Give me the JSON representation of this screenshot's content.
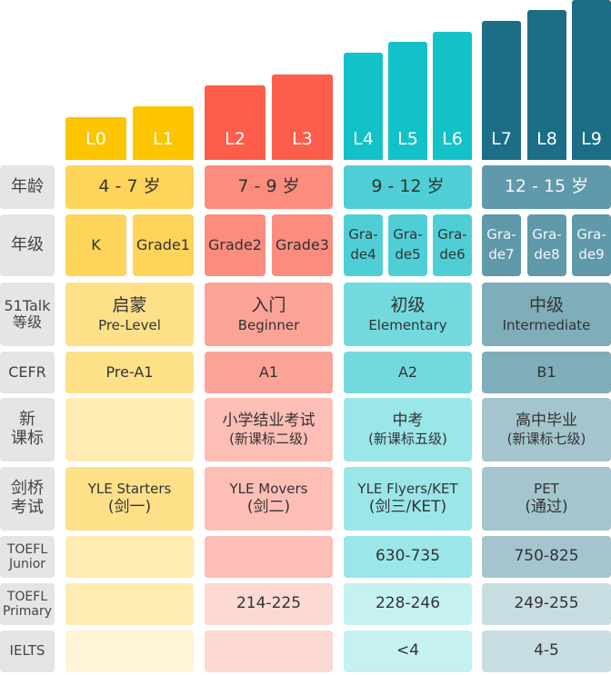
{
  "levels": [
    "L0",
    "L1",
    "L2",
    "L3",
    "L4",
    "L5",
    "L6",
    "L7",
    "L8",
    "L9"
  ],
  "row_labels": {
    "age": "年龄",
    "grade": "年级",
    "talk_level": [
      "51Talk",
      "等级"
    ],
    "cefr": "CEFR",
    "curriculum": [
      "新",
      "课标"
    ],
    "cambridge": [
      "剑桥",
      "考试"
    ],
    "toefl_junior": [
      "TOEFL",
      "Junior"
    ],
    "toefl_primary": [
      "TOEFL",
      "Primary"
    ],
    "ielts": "IELTS"
  },
  "age": [
    "4 - 7 岁",
    "7 - 9 岁",
    "9 - 12 岁",
    "12 - 15 岁"
  ],
  "grade": {
    "k": "K",
    "grade1": "Grade1",
    "grade2": "Grade2",
    "grade3": "Grade3",
    "split": [
      [
        "Gra-",
        "de4"
      ],
      [
        "Gra-",
        "de5"
      ],
      [
        "Gra-",
        "de6"
      ],
      [
        "Gra-",
        "de7"
      ],
      [
        "Gra-",
        "de8"
      ],
      [
        "Gra-",
        "de9"
      ]
    ]
  },
  "talk_level": [
    {
      "cn": "启蒙",
      "en": "Pre-Level"
    },
    {
      "cn": "入门",
      "en": "Beginner"
    },
    {
      "cn": "初级",
      "en": "Elementary"
    },
    {
      "cn": "中级",
      "en": "Intermediate"
    }
  ],
  "cefr": [
    "Pre-A1",
    "A1",
    "A2",
    "B1"
  ],
  "curriculum": [
    {
      "main": "",
      "sub": ""
    },
    {
      "main": "小学结业考试",
      "sub": "(新课标二级)"
    },
    {
      "main": "中考",
      "sub": "(新课标五级)"
    },
    {
      "main": "高中毕业",
      "sub": "(新课标七级)"
    }
  ],
  "cambridge": [
    {
      "main": "YLE Starters",
      "sub": "(剑一)"
    },
    {
      "main": "YLE Movers",
      "sub": "(剑二)"
    },
    {
      "main": "YLE Flyers/KET",
      "sub": "(剑三/KET)"
    },
    {
      "main": "PET",
      "sub": "(通过)"
    }
  ],
  "toefl_junior": [
    "",
    "",
    "630-735",
    "750-825"
  ],
  "toefl_primary": [
    "",
    "214-225",
    "228-246",
    "249-255"
  ],
  "ielts": [
    "",
    "",
    "<4",
    "4-5"
  ],
  "colors": {
    "yellow": "#fdc500",
    "red": "#fc5e4b",
    "teal": "#13c2c9",
    "blue": "#1c6e87"
  }
}
